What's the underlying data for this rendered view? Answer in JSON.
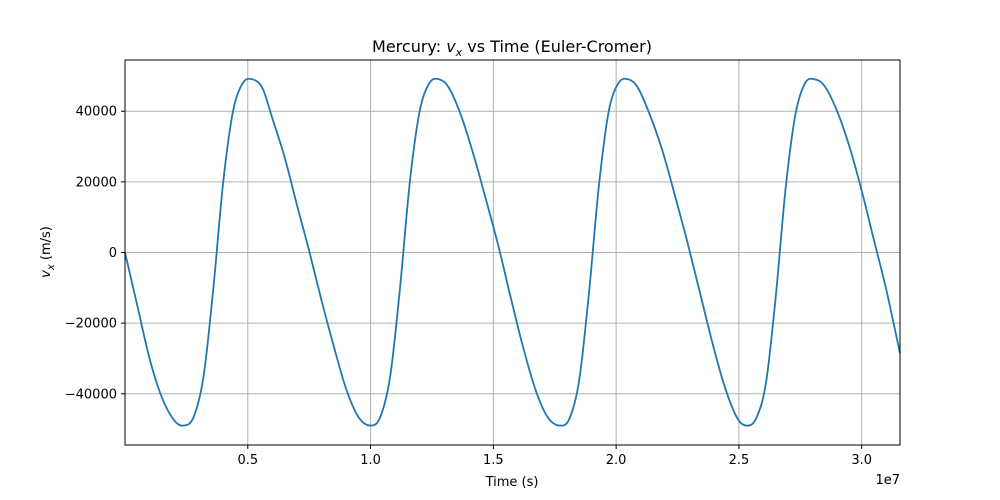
{
  "chart_data": {
    "type": "line",
    "title": {
      "prefix": "Mercury: ",
      "var": "v",
      "sub": "x",
      "suffix": " vs Time (Euler-Cromer)"
    },
    "xlabel": "Time (s)",
    "ylabel": {
      "var": "v",
      "sub": "x",
      "suffix": " (m/s)"
    },
    "x_offset_label": "1e7",
    "xlim": [
      0,
      31560000
    ],
    "ylim": [
      -54500,
      54500
    ],
    "x_ticks": [
      5000000,
      10000000,
      15000000,
      20000000,
      25000000,
      30000000
    ],
    "x_tick_labels": [
      "0.5",
      "1.0",
      "1.5",
      "2.0",
      "2.5",
      "3.0"
    ],
    "y_ticks": [
      -40000,
      -20000,
      0,
      20000,
      40000
    ],
    "y_tick_labels": [
      "−40000",
      "−20000",
      "0",
      "20000",
      "40000"
    ],
    "grid": true,
    "series": [
      {
        "color": "#1f77b4",
        "x": [
          0,
          500000,
          1000000,
          1500000,
          2000000,
          2400000,
          2800000,
          3200000,
          3600000,
          4000000,
          4400000,
          4800000,
          5200000,
          5600000,
          6000000,
          6500000,
          7000000,
          7500000,
          8000000,
          8500000,
          9000000,
          9500000,
          10000000,
          10400000,
          10800000,
          11200000,
          11600000,
          12000000,
          12400000,
          12800000,
          13200000,
          13700000,
          14200000,
          14700000,
          15200000,
          15700000,
          16200000,
          16700000,
          17200000,
          17700000,
          18100000,
          18500000,
          18900000,
          19300000,
          19700000,
          20100000,
          20500000,
          20900000,
          21400000,
          21900000,
          22400000,
          22900000,
          23400000,
          23900000,
          24400000,
          24900000,
          25300000,
          25700000,
          26100000,
          26500000,
          26900000,
          27300000,
          27700000,
          28100000,
          28500000,
          29000000,
          29500000,
          30000000,
          30500000,
          31000000,
          31560000
        ],
        "y": [
          0,
          -15000,
          -30000,
          -41000,
          -47500,
          -49000,
          -46500,
          -35000,
          -10000,
          20000,
          40000,
          48000,
          49000,
          46500,
          38000,
          27000,
          13500,
          500,
          -13500,
          -26500,
          -38500,
          -46500,
          -49000,
          -46500,
          -35000,
          -10000,
          20000,
          40000,
          48000,
          49000,
          46500,
          38500,
          27500,
          15000,
          2000,
          -12500,
          -26500,
          -38500,
          -46500,
          -49000,
          -47000,
          -36000,
          -11000,
          19000,
          40000,
          48000,
          49000,
          46500,
          38500,
          28500,
          16000,
          3000,
          -11000,
          -25000,
          -37500,
          -46500,
          -49000,
          -47000,
          -37000,
          -12500,
          18000,
          39000,
          48000,
          49000,
          47000,
          40000,
          30000,
          17500,
          3500,
          -10500,
          -28500
        ]
      }
    ]
  }
}
